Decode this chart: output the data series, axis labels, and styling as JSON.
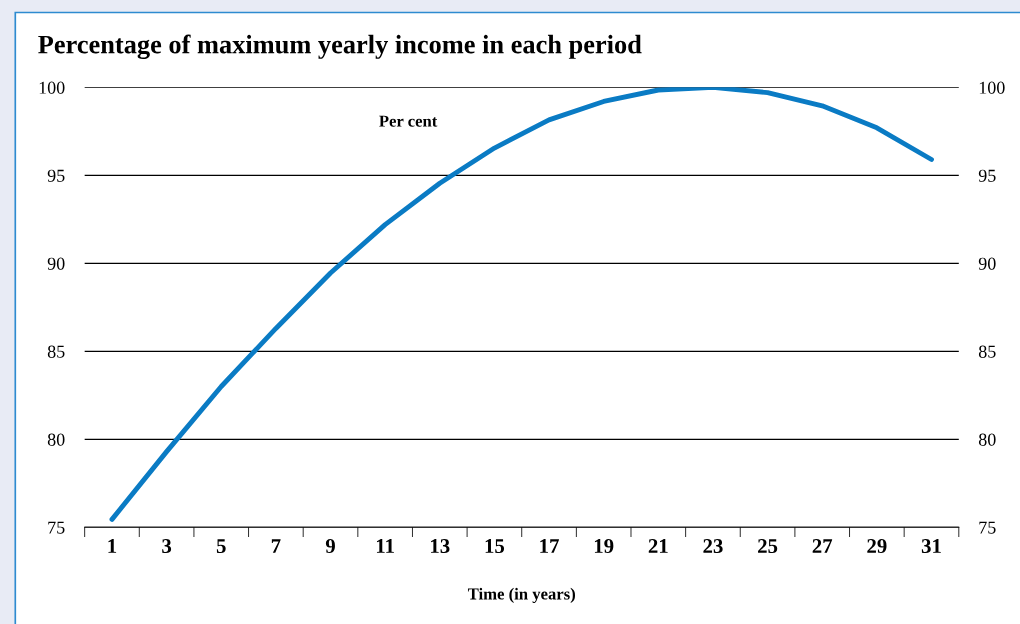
{
  "chart_data": {
    "type": "line",
    "title": "Percentage of maximum yearly income in each period",
    "xlabel": "Time (in years)",
    "annotations": [
      "Per cent"
    ],
    "categories": [
      "1",
      "3",
      "5",
      "7",
      "9",
      "11",
      "13",
      "15",
      "17",
      "19",
      "21",
      "23",
      "25",
      "27",
      "29",
      "31"
    ],
    "series": [
      {
        "color": "#0a7bc4",
        "values": [
          75.45,
          79.3,
          83.0,
          86.3,
          89.45,
          92.2,
          94.55,
          96.55,
          98.15,
          99.2,
          99.85,
          100.0,
          99.7,
          98.95,
          97.7,
          95.9
        ]
      }
    ],
    "ylim": [
      75,
      100
    ],
    "yticks": [
      75,
      80,
      85,
      90,
      95,
      100
    ],
    "y2lim": [
      75,
      100
    ],
    "y2ticks": [
      75,
      80,
      85,
      90,
      95,
      100
    ],
    "grid": "y",
    "marker": "none",
    "line_style": "solid"
  }
}
